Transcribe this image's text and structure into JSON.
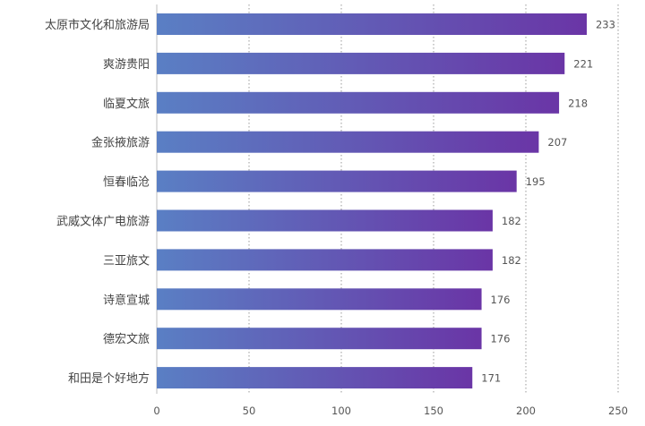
{
  "chart_data": {
    "type": "bar",
    "orientation": "horizontal",
    "categories": [
      "太原市文化和旅游局",
      "爽游贵阳",
      "临夏文旅",
      "金张掖旅游",
      "恒春临沧",
      "武威文体广电旅游",
      "三亚旅文",
      "诗意宣城",
      "德宏文旅",
      "和田是个好地方"
    ],
    "values": [
      233,
      221,
      218,
      207,
      195,
      182,
      182,
      176,
      176,
      171
    ],
    "xlim": [
      0,
      250
    ],
    "xticks": [
      0,
      50,
      100,
      150,
      200,
      250
    ],
    "title": "",
    "xlabel": "",
    "ylabel": "",
    "grid": "vertical-dotted",
    "data_labels": "outside-end",
    "colors": {
      "bar_start": "#5a7fc4",
      "bar_end": "#6a35a6"
    }
  }
}
